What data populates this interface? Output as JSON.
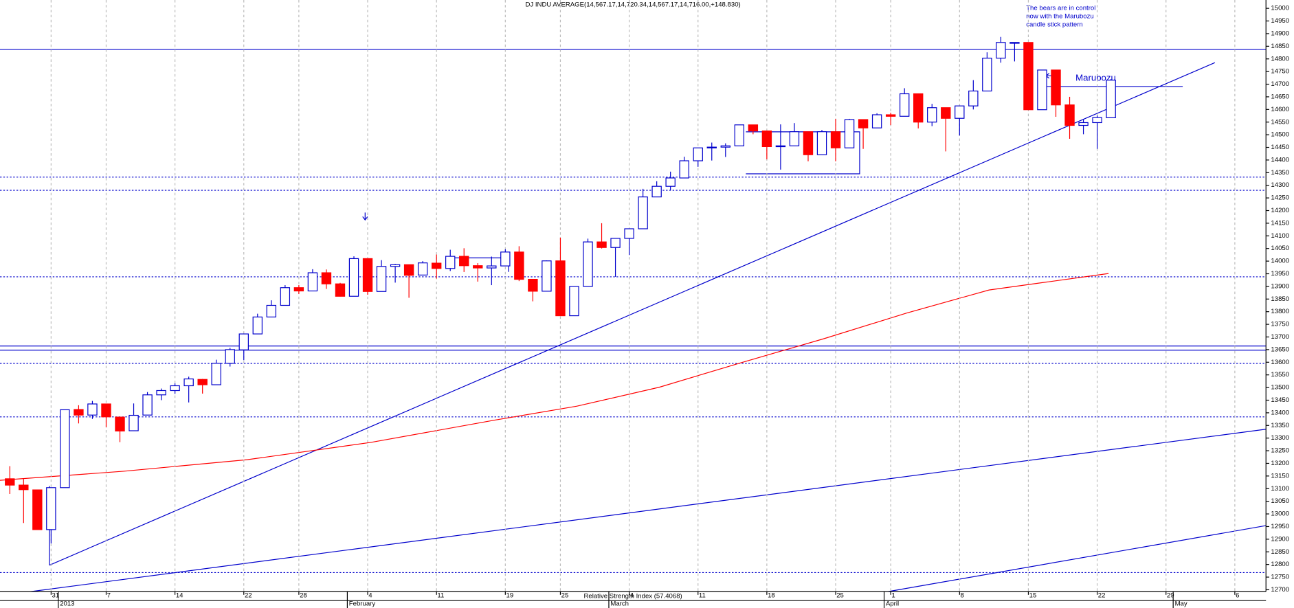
{
  "chart_data": {
    "type": "candlestick",
    "title": "DJ INDU AVERAGE(14,567.17,14,720.34,14,567.17,14,716.00,+148.830)",
    "annotation": [
      "The bears are in control",
      "now with the Marubozu",
      "candle stick pattern"
    ],
    "marker_label": "Marubozu",
    "indicator_label": "Relative Strength Index (57.4068)",
    "categories": [
      null,
      null,
      null,
      "31",
      null,
      null,
      null,
      "7",
      null,
      null,
      null,
      null,
      "14",
      null,
      null,
      null,
      null,
      "22",
      null,
      null,
      null,
      "28",
      null,
      null,
      null,
      null,
      "4",
      null,
      null,
      null,
      null,
      "11",
      null,
      null,
      null,
      null,
      "19",
      null,
      null,
      null,
      "25",
      null,
      null,
      null,
      null,
      "4",
      null,
      null,
      null,
      null,
      "11",
      null,
      null,
      null,
      null,
      "18",
      null,
      null,
      null,
      null,
      "25",
      null,
      null,
      null,
      "1",
      null,
      null,
      null,
      null,
      "8",
      null,
      null,
      null,
      null,
      "15",
      null,
      null,
      null,
      null,
      "22",
      null,
      null,
      null,
      null,
      "29",
      null,
      null,
      null,
      null,
      "6",
      null,
      null
    ],
    "month_labels": [
      null,
      null,
      null,
      null,
      "2013",
      null,
      null,
      null,
      null,
      null,
      null,
      null,
      null,
      null,
      null,
      null,
      null,
      null,
      null,
      null,
      null,
      null,
      null,
      null,
      null,
      "February",
      null,
      null,
      null,
      null,
      null,
      null,
      null,
      null,
      null,
      null,
      null,
      null,
      null,
      null,
      null,
      null,
      null,
      null,
      "March",
      null,
      null,
      null,
      null,
      null,
      null,
      null,
      null,
      null,
      null,
      null,
      null,
      null,
      null,
      null,
      null,
      null,
      null,
      null,
      "April",
      null,
      null,
      null,
      null,
      null,
      null,
      null,
      null,
      null,
      null,
      null,
      null,
      null,
      null,
      null,
      null,
      null,
      null,
      null,
      null,
      "May",
      null,
      null,
      null,
      null,
      null
    ],
    "open": [
      13139,
      13114,
      13095,
      12938,
      13104,
      13413,
      13391,
      13435,
      13383,
      13329,
      13391,
      13471,
      13488,
      13507,
      13532,
      13511,
      13596,
      13649,
      13712,
      13779,
      13825,
      13895,
      13882,
      13954,
      13910,
      13861,
      14010,
      13880,
      13979,
      13986,
      13945,
      13992,
      13971,
      14019,
      13982,
      13973,
      13981,
      14036,
      13928,
      13881,
      14001,
      13784,
      13900,
      14076,
      14054,
      14090,
      14128,
      14254,
      14296,
      14329,
      14397,
      14448,
      14451,
      14456,
      14539,
      14515,
      14453,
      14456,
      14512,
      14421,
      14512,
      14448,
      14560,
      14527,
      14579,
      14573,
      14662,
      14550,
      14607,
      14565,
      14614,
      14673,
      14803,
      14865,
      14865,
      14599,
      14756,
      14618,
      14537,
      14548,
      14567.17,
      null,
      null,
      null,
      null,
      null,
      null,
      null,
      null,
      null,
      null,
      null
    ],
    "high": [
      13189,
      13141,
      13095,
      13104,
      13412,
      13430,
      13447,
      13435,
      13383,
      13437,
      13482,
      13496,
      13517,
      13543,
      13534,
      13610,
      13657,
      13712,
      13792,
      13845,
      13905,
      13905,
      13968,
      13967,
      13914,
      14019,
      14010,
      14004,
      13989,
      13986,
      14000,
      14026,
      14045,
      14051,
      13992,
      14018,
      14047,
      14059,
      13928,
      14003,
      14093,
      13901,
      14089,
      14150,
      14090,
      14128,
      14286,
      14316,
      14354,
      14413,
      14448,
      14469,
      14466,
      14539,
      14539,
      14515,
      14541,
      14546,
      14512,
      14519,
      14563,
      14563,
      14560,
      14585,
      14587,
      14684,
      14662,
      14622,
      14607,
      14613,
      14716,
      14826,
      14887,
      14865,
      14865,
      14756,
      14756,
      14650,
      14561,
      14576,
      14720.34,
      null,
      null,
      null,
      null,
      null,
      null,
      null,
      null,
      null,
      null,
      null
    ],
    "low": [
      13079,
      12964,
      12938,
      12883,
      13104,
      13358,
      13376,
      13343,
      13284,
      13329,
      13391,
      13450,
      13475,
      13441,
      13476,
      13511,
      13583,
      13608,
      13712,
      13779,
      13825,
      13870,
      13882,
      13890,
      13860,
      13861,
      13867,
      13880,
      13915,
      13855,
      13945,
      13931,
      13961,
      13957,
      13919,
      13905,
      13981,
      13921,
      13841,
      13881,
      13783,
      13784,
      13900,
      14050,
      13938,
      14024,
      14128,
      14254,
      14280,
      14329,
      14373,
      14398,
      14412,
      14456,
      14502,
      14403,
      14362,
      14456,
      14395,
      14421,
      14395,
      14448,
      14444,
      14527,
      14538,
      14573,
      14525,
      14534,
      14434,
      14497,
      14600,
      14673,
      14785,
      14790,
      14598,
      14599,
      14571,
      14484,
      14502,
      14444,
      14567.17,
      null,
      null,
      null,
      null,
      null,
      null,
      null,
      null,
      null,
      null,
      null
    ],
    "close": [
      13114,
      13096,
      12938,
      13104,
      13412,
      13391,
      13435,
      13384,
      13328,
      13390,
      13471,
      13488,
      13507,
      13534,
      13511,
      13596,
      13650,
      13712,
      13779,
      13825,
      13895,
      13882,
      13954,
      13910,
      13861,
      14010,
      13880,
      13979,
      13986,
      13944,
      13993,
      13971,
      14019,
      13982,
      13973,
      13981,
      14036,
      13928,
      13881,
      14001,
      13784,
      13900,
      14076,
      14054,
      14090,
      14128,
      14254,
      14296,
      14329,
      14397,
      14448,
      14451,
      14456,
      14539,
      14515,
      14453,
      14456,
      14512,
      14421,
      14512,
      14448,
      14560,
      14527,
      14579,
      14573,
      14662,
      14550,
      14607,
      14565,
      14614,
      14673,
      14803,
      14865,
      14865,
      14599,
      14756,
      14618,
      14537,
      14548,
      14568,
      14716.0,
      null,
      null,
      null,
      null,
      null,
      null,
      null,
      null,
      null,
      null,
      null
    ],
    "up_color": "#0000cc",
    "down_color": "#ff0000",
    "ylim": [
      12693,
      15033
    ],
    "yticks": [
      12700,
      12750,
      12800,
      12850,
      12900,
      12950,
      13000,
      13050,
      13100,
      13150,
      13200,
      13250,
      13300,
      13350,
      13400,
      13450,
      13500,
      13550,
      13600,
      13650,
      13700,
      13750,
      13800,
      13850,
      13900,
      13950,
      14000,
      14050,
      14100,
      14150,
      14200,
      14250,
      14300,
      14350,
      14400,
      14450,
      14500,
      14550,
      14600,
      14650,
      14700,
      14750,
      14800,
      14850,
      14900,
      14950,
      15000
    ],
    "grid": true
  }
}
